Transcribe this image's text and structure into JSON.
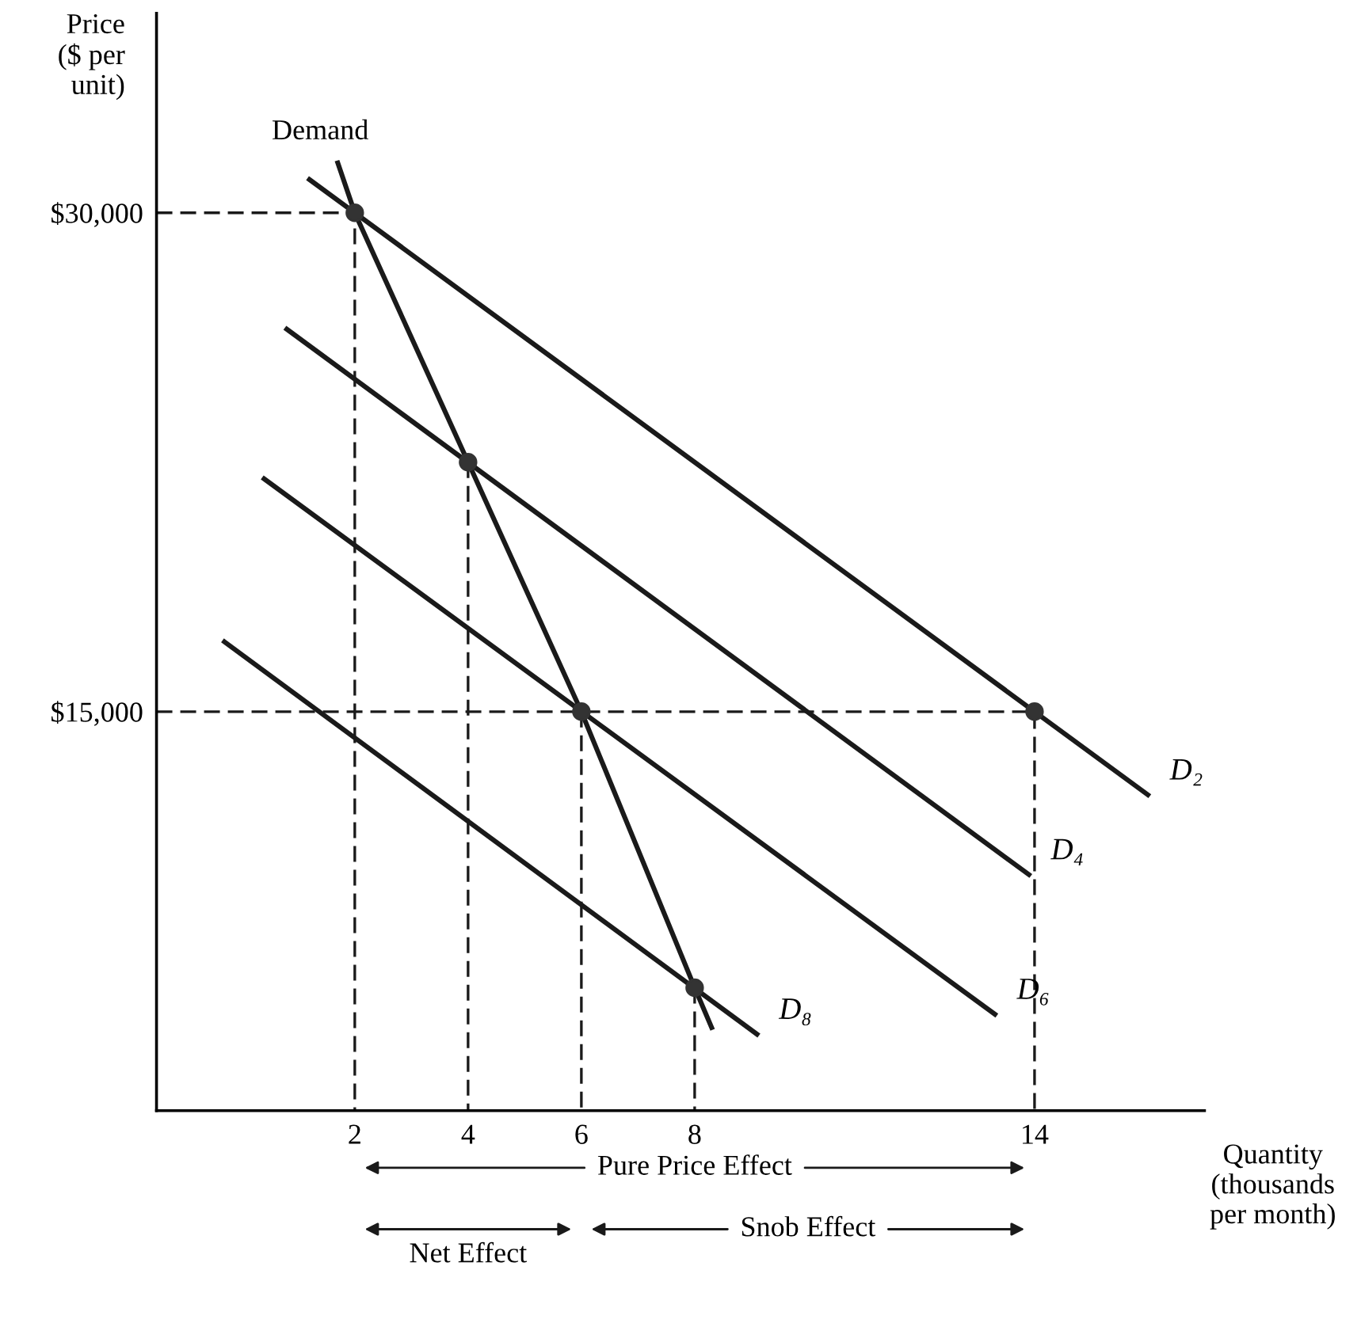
{
  "chart_data": {
    "type": "line",
    "xlabel": "Quantity\n(thousands\nper month)",
    "ylabel": "Price\n($ per\nunit)",
    "xlim": [
      -1.5,
      17
    ],
    "ylim": [
      3000,
      36000
    ],
    "xticks": [
      2,
      4,
      6,
      8,
      14
    ],
    "yticks": [
      {
        "value": 15000,
        "label": "$15,000"
      },
      {
        "value": 30000,
        "label": "$30,000"
      }
    ],
    "grid": false,
    "marker": "none",
    "series": [
      {
        "name": "Demand",
        "color": "#1a1a1a",
        "x": [
          1.7,
          2,
          4,
          6,
          8,
          8.3
        ],
        "values": [
          31500,
          30000,
          22500,
          15000,
          6700,
          5500
        ]
      },
      {
        "name": "D₂",
        "color": "#1a1a1a",
        "x": [
          1.2,
          16
        ],
        "values": [
          31000,
          12500
        ]
      },
      {
        "name": "D₄",
        "color": "#1a1a1a",
        "x": [
          0.8,
          13.9
        ],
        "values": [
          26500,
          10100
        ]
      },
      {
        "name": "D₆",
        "color": "#1a1a1a",
        "x": [
          0.4,
          13.3
        ],
        "values": [
          22000,
          5900
        ]
      },
      {
        "name": "D₈",
        "color": "#1a1a1a",
        "x": [
          -0.3,
          9.1
        ],
        "values": [
          17100,
          5300
        ]
      },
      {
        "type": "line",
        "line_style": "dashed",
        "color": "#1a1a1a",
        "x": [
          -1.5,
          2,
          2
        ],
        "values": [
          30000,
          30000,
          3000
        ]
      },
      {
        "type": "line",
        "line_style": "dashed",
        "color": "#1a1a1a",
        "x": [
          4,
          4
        ],
        "values": [
          22500,
          3000
        ]
      },
      {
        "type": "line",
        "line_style": "dashed",
        "color": "#1a1a1a",
        "x": [
          -1.5,
          14,
          14
        ],
        "values": [
          15000,
          15000,
          3000
        ]
      },
      {
        "type": "line",
        "line_style": "dashed",
        "color": "#1a1a1a",
        "x": [
          6,
          6
        ],
        "values": [
          15000,
          3000
        ]
      },
      {
        "type": "line",
        "line_style": "dashed",
        "color": "#1a1a1a",
        "x": [
          8,
          8
        ],
        "values": [
          6700,
          3000
        ]
      },
      {
        "type": "scatter",
        "marker": "circle",
        "color": "#333333",
        "x": [
          2,
          4,
          6,
          8,
          14
        ],
        "values": [
          30000,
          22500,
          15000,
          6700,
          15000
        ]
      }
    ],
    "annotations": [
      "Pure Price Effect",
      "Snob Effect",
      "Net Effect"
    ]
  }
}
